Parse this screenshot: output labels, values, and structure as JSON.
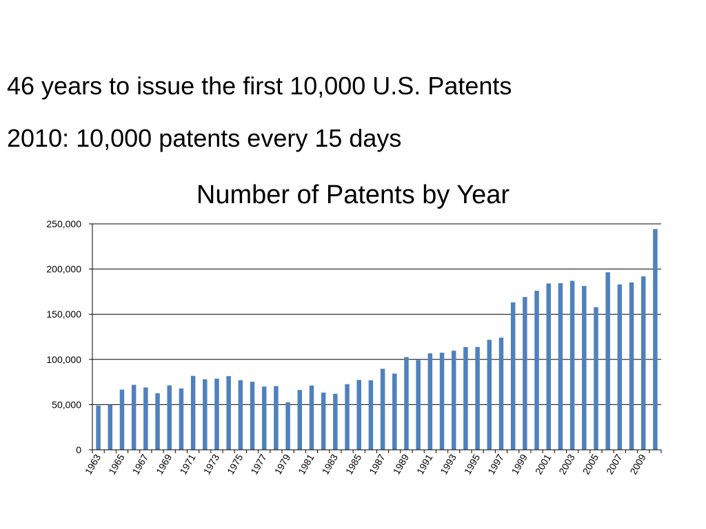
{
  "slide": {
    "line1": "46 years to issue the first 10,000 U.S. Patents",
    "line2": "2010: 10,000 patents every 15 days"
  },
  "chart_data": {
    "type": "bar",
    "title": "Number of Patents by Year",
    "xlabel": "",
    "ylabel": "",
    "ylim": [
      0,
      250000
    ],
    "yticks": [
      0,
      50000,
      100000,
      150000,
      200000,
      250000
    ],
    "ytick_labels": [
      "0",
      "50,000",
      "100,000",
      "150,000",
      "200,000",
      "250,000"
    ],
    "grid": true,
    "legend": "none",
    "bar_color": "#4F81BD",
    "categories": [
      1963,
      1964,
      1965,
      1966,
      1967,
      1968,
      1969,
      1970,
      1971,
      1972,
      1973,
      1974,
      1975,
      1976,
      1977,
      1978,
      1979,
      1980,
      1981,
      1982,
      1983,
      1984,
      1985,
      1986,
      1987,
      1988,
      1989,
      1990,
      1991,
      1992,
      1993,
      1994,
      1995,
      1996,
      1997,
      1998,
      1999,
      2000,
      2001,
      2002,
      2003,
      2004,
      2005,
      2006,
      2007,
      2008,
      2009,
      2010
    ],
    "x_tick_labels": [
      "1963",
      "1965",
      "1967",
      "1969",
      "1971",
      "1973",
      "1975",
      "1977",
      "1979",
      "1981",
      "1983",
      "1985",
      "1987",
      "1989",
      "1991",
      "1993",
      "1995",
      "1997",
      "1999",
      "2001",
      "2003",
      "2005",
      "2007",
      "2009"
    ],
    "values": [
      48900,
      50000,
      66600,
      71900,
      69000,
      62600,
      71300,
      67900,
      81800,
      78000,
      78700,
      81500,
      76900,
      75300,
      70000,
      70500,
      52500,
      66200,
      71100,
      63300,
      62000,
      72600,
      77300,
      76900,
      89600,
      84300,
      102600,
      99300,
      106700,
      107400,
      109700,
      113600,
      113800,
      121700,
      124100,
      163100,
      169100,
      176000,
      184000,
      184400,
      187000,
      181300,
      157700,
      196400,
      182900,
      185200,
      191900,
      244300
    ]
  }
}
